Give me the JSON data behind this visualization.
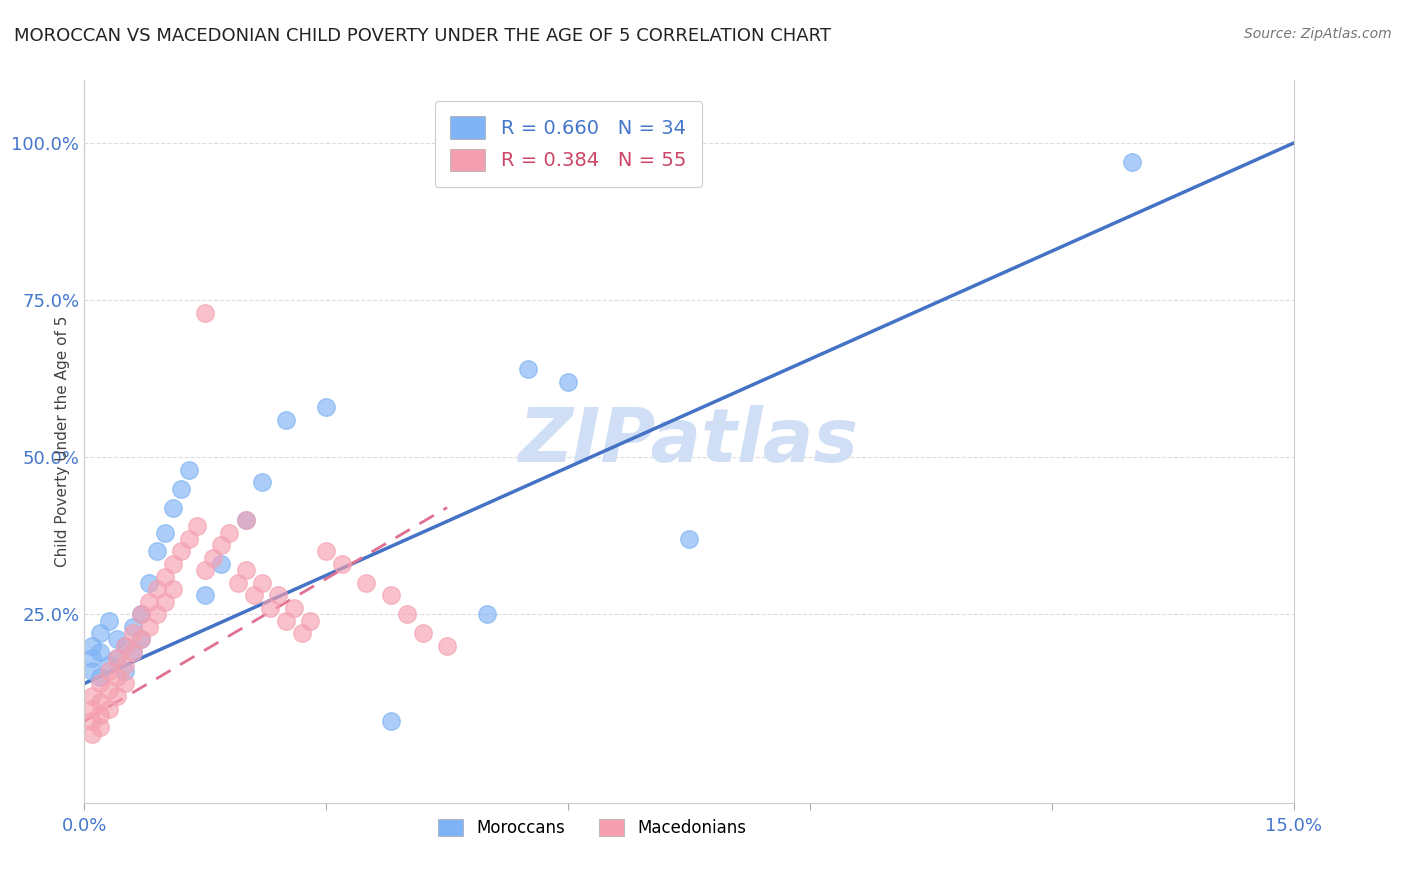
{
  "title": "MOROCCAN VS MACEDONIAN CHILD POVERTY UNDER THE AGE OF 5 CORRELATION CHART",
  "source": "Source: ZipAtlas.com",
  "ylabel": "Child Poverty Under the Age of 5",
  "xlim": [
    0.0,
    0.15
  ],
  "ylim": [
    -0.05,
    1.1
  ],
  "yticks": [
    0.25,
    0.5,
    0.75,
    1.0
  ],
  "ytick_labels": [
    "25.0%",
    "50.0%",
    "75.0%",
    "100.0%"
  ],
  "xtick_positions": [
    0.0,
    0.03,
    0.06,
    0.09,
    0.12,
    0.15
  ],
  "xtick_labels": [
    "0.0%",
    "",
    "",
    "",
    "",
    "15.0%"
  ],
  "moroccan_R": 0.66,
  "moroccan_N": 34,
  "macedonian_R": 0.384,
  "macedonian_N": 55,
  "moroccan_color": "#7eb3f5",
  "macedonian_color": "#f5a0b0",
  "moroccan_line_color": "#4472c4",
  "macedonian_line_color": "#e07090",
  "watermark": "ZIPatlas",
  "watermark_color": "#d0dff5",
  "background_color": "#ffffff",
  "grid_color": "#dddddd",
  "axis_label_color": "#4477cc",
  "title_color": "#222222",
  "source_color": "#777777",
  "moroccan_x": [
    0.001,
    0.001,
    0.001,
    0.002,
    0.002,
    0.002,
    0.003,
    0.003,
    0.004,
    0.004,
    0.005,
    0.005,
    0.006,
    0.006,
    0.007,
    0.007,
    0.008,
    0.009,
    0.01,
    0.011,
    0.012,
    0.013,
    0.015,
    0.017,
    0.02,
    0.022,
    0.025,
    0.03,
    0.038,
    0.05,
    0.055,
    0.06,
    0.13,
    0.075
  ],
  "moroccan_y": [
    0.2,
    0.18,
    0.16,
    0.22,
    0.19,
    0.15,
    0.24,
    0.17,
    0.21,
    0.18,
    0.2,
    0.16,
    0.23,
    0.19,
    0.25,
    0.21,
    0.3,
    0.35,
    0.38,
    0.42,
    0.45,
    0.48,
    0.28,
    0.33,
    0.4,
    0.46,
    0.56,
    0.58,
    0.08,
    0.25,
    0.64,
    0.62,
    0.97,
    0.37
  ],
  "macedonian_x": [
    0.001,
    0.001,
    0.001,
    0.001,
    0.002,
    0.002,
    0.002,
    0.002,
    0.003,
    0.003,
    0.003,
    0.004,
    0.004,
    0.004,
    0.005,
    0.005,
    0.005,
    0.006,
    0.006,
    0.007,
    0.007,
    0.008,
    0.008,
    0.009,
    0.009,
    0.01,
    0.01,
    0.011,
    0.011,
    0.012,
    0.013,
    0.014,
    0.015,
    0.016,
    0.017,
    0.018,
    0.019,
    0.02,
    0.021,
    0.022,
    0.023,
    0.024,
    0.025,
    0.026,
    0.027,
    0.028,
    0.03,
    0.032,
    0.035,
    0.038,
    0.04,
    0.042,
    0.045,
    0.015,
    0.02
  ],
  "macedonian_y": [
    0.12,
    0.1,
    0.08,
    0.06,
    0.14,
    0.11,
    0.09,
    0.07,
    0.16,
    0.13,
    0.1,
    0.18,
    0.15,
    0.12,
    0.2,
    0.17,
    0.14,
    0.22,
    0.19,
    0.25,
    0.21,
    0.27,
    0.23,
    0.29,
    0.25,
    0.31,
    0.27,
    0.33,
    0.29,
    0.35,
    0.37,
    0.39,
    0.32,
    0.34,
    0.36,
    0.38,
    0.3,
    0.32,
    0.28,
    0.3,
    0.26,
    0.28,
    0.24,
    0.26,
    0.22,
    0.24,
    0.35,
    0.33,
    0.3,
    0.28,
    0.25,
    0.22,
    0.2,
    0.73,
    0.4
  ],
  "blue_line_x0": 0.0,
  "blue_line_y0": 0.14,
  "blue_line_x1": 0.15,
  "blue_line_y1": 1.0,
  "pink_line_x0": 0.0,
  "pink_line_y0": 0.08,
  "pink_line_x1": 0.045,
  "pink_line_y1": 0.42
}
